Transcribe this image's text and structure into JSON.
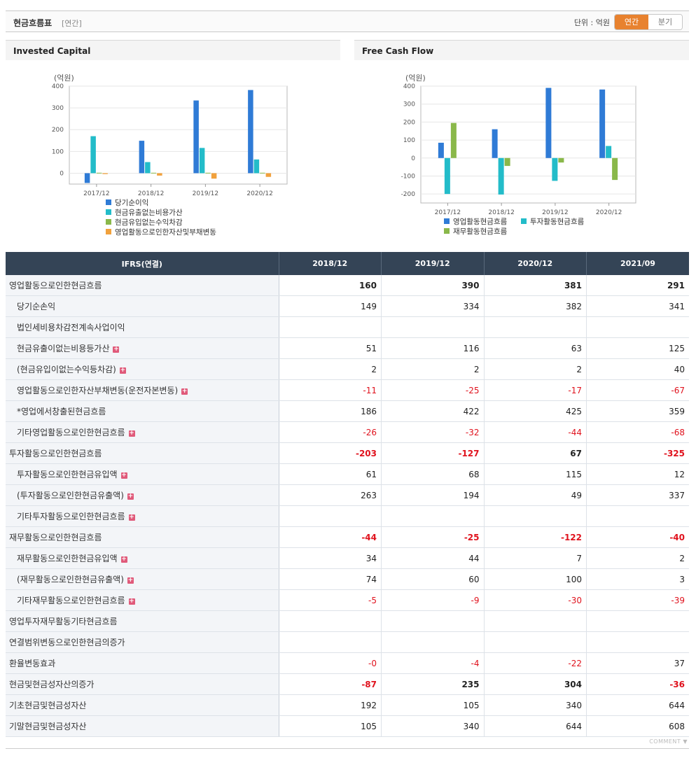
{
  "header": {
    "title": "현금흐름표",
    "period_label": "[연간]",
    "unit_label": "단위 : 억원",
    "toggle": [
      "연간",
      "분기"
    ]
  },
  "charts": {
    "invested_capital": {
      "title": "Invested Capital",
      "unit": "(억원)",
      "legend": [
        "당기순이익",
        "현금유출없는비용가산",
        "현금유입없는수익차감",
        "영업활동으로인한자산및부채변동"
      ]
    },
    "free_cash_flow": {
      "title": "Free Cash Flow",
      "unit": "(억원)",
      "legend": [
        "영업활동현금흐름",
        "투자활동현금흐름",
        "재무활동현금흐름"
      ]
    }
  },
  "chart_data": [
    {
      "type": "bar",
      "categories": [
        "2017/12",
        "2018/12",
        "2019/12",
        "2020/12"
      ],
      "ylim": [
        -50,
        400
      ],
      "yticks": [
        0,
        100,
        200,
        300,
        400
      ],
      "series": [
        {
          "name": "당기순이익",
          "color": "#2f7bd6",
          "values": [
            -45,
            149,
            334,
            382
          ]
        },
        {
          "name": "현금유출없는비용가산",
          "color": "#23bcc9",
          "values": [
            170,
            51,
            116,
            63
          ]
        },
        {
          "name": "현금유입없는수익차감",
          "color": "#8ab84a",
          "values": [
            2,
            2,
            2,
            2
          ]
        },
        {
          "name": "영업활동으로인한자산및부채변동",
          "color": "#f1a13c",
          "values": [
            -4,
            -11,
            -25,
            -17
          ]
        }
      ]
    },
    {
      "type": "bar",
      "categories": [
        "2017/12",
        "2018/12",
        "2019/12",
        "2020/12"
      ],
      "ylim": [
        -250,
        400
      ],
      "yticks": [
        -200,
        -100,
        0,
        100,
        200,
        300,
        400
      ],
      "series": [
        {
          "name": "영업활동현금흐름",
          "color": "#2f7bd6",
          "values": [
            85,
            160,
            390,
            381
          ]
        },
        {
          "name": "투자활동현금흐름",
          "color": "#23bcc9",
          "values": [
            -200,
            -203,
            -127,
            67
          ]
        },
        {
          "name": "재무활동현금흐름",
          "color": "#8ab84a",
          "values": [
            195,
            -44,
            -25,
            -122
          ]
        }
      ]
    }
  ],
  "table": {
    "corner_header": "IFRS(연결)",
    "columns": [
      "2018/12",
      "2019/12",
      "2020/12",
      "2021/09"
    ],
    "rows": [
      {
        "label": "영업활동으로인한현금흐름",
        "values": [
          "160",
          "390",
          "381",
          "291"
        ],
        "bold": true,
        "sub": false,
        "expand": false
      },
      {
        "label": "당기순손익",
        "values": [
          "149",
          "334",
          "382",
          "341"
        ],
        "bold": false,
        "sub": true,
        "expand": false
      },
      {
        "label": "법인세비용차감전계속사업이익",
        "values": [
          "",
          "",
          "",
          ""
        ],
        "bold": false,
        "sub": true,
        "expand": false
      },
      {
        "label": "현금유출이없는비용등가산",
        "values": [
          "51",
          "116",
          "63",
          "125"
        ],
        "bold": false,
        "sub": true,
        "expand": true
      },
      {
        "label": "(현금유입이없는수익등차감)",
        "values": [
          "2",
          "2",
          "2",
          "40"
        ],
        "bold": false,
        "sub": true,
        "expand": true
      },
      {
        "label": "영업활동으로인한자산부채변동(운전자본변동)",
        "values": [
          "-11",
          "-25",
          "-17",
          "-67"
        ],
        "bold": false,
        "sub": true,
        "expand": true
      },
      {
        "label": "*영업에서창출된현금흐름",
        "values": [
          "186",
          "422",
          "425",
          "359"
        ],
        "bold": false,
        "sub": true,
        "expand": false
      },
      {
        "label": "기타영업활동으로인한현금흐름",
        "values": [
          "-26",
          "-32",
          "-44",
          "-68"
        ],
        "bold": false,
        "sub": true,
        "expand": true
      },
      {
        "label": "투자활동으로인한현금흐름",
        "values": [
          "-203",
          "-127",
          "67",
          "-325"
        ],
        "bold": true,
        "sub": false,
        "expand": false
      },
      {
        "label": "투자활동으로인한현금유입액",
        "values": [
          "61",
          "68",
          "115",
          "12"
        ],
        "bold": false,
        "sub": true,
        "expand": true
      },
      {
        "label": "(투자활동으로인한현금유출액)",
        "values": [
          "263",
          "194",
          "49",
          "337"
        ],
        "bold": false,
        "sub": true,
        "expand": true
      },
      {
        "label": "기타투자활동으로인한현금흐름",
        "values": [
          "",
          "",
          "",
          ""
        ],
        "bold": false,
        "sub": true,
        "expand": true
      },
      {
        "label": "재무활동으로인한현금흐름",
        "values": [
          "-44",
          "-25",
          "-122",
          "-40"
        ],
        "bold": true,
        "sub": false,
        "expand": false
      },
      {
        "label": "재무활동으로인한현금유입액",
        "values": [
          "34",
          "44",
          "7",
          "2"
        ],
        "bold": false,
        "sub": true,
        "expand": true
      },
      {
        "label": "(재무활동으로인한현금유출액)",
        "values": [
          "74",
          "60",
          "100",
          "3"
        ],
        "bold": false,
        "sub": true,
        "expand": true
      },
      {
        "label": "기타재무활동으로인한현금흐름",
        "values": [
          "-5",
          "-9",
          "-30",
          "-39"
        ],
        "bold": false,
        "sub": true,
        "expand": true
      },
      {
        "label": "영업투자재무활동기타현금흐름",
        "values": [
          "",
          "",
          "",
          ""
        ],
        "bold": false,
        "sub": false,
        "expand": false
      },
      {
        "label": "연결범위변동으로인한현금의증가",
        "values": [
          "",
          "",
          "",
          ""
        ],
        "bold": false,
        "sub": false,
        "expand": false
      },
      {
        "label": "환율변동효과",
        "values": [
          "-0",
          "-4",
          "-22",
          "37"
        ],
        "bold": false,
        "sub": false,
        "expand": false
      },
      {
        "label": "현금및현금성자산의증가",
        "values": [
          "-87",
          "235",
          "304",
          "-36"
        ],
        "bold": true,
        "sub": false,
        "expand": false
      },
      {
        "label": "기초현금및현금성자산",
        "values": [
          "192",
          "105",
          "340",
          "644"
        ],
        "bold": false,
        "sub": false,
        "expand": false
      },
      {
        "label": "기말현금및현금성자산",
        "values": [
          "105",
          "340",
          "644",
          "608"
        ],
        "bold": false,
        "sub": false,
        "expand": false
      }
    ]
  },
  "footer": {
    "comment_label": "COMMENT ▼"
  }
}
